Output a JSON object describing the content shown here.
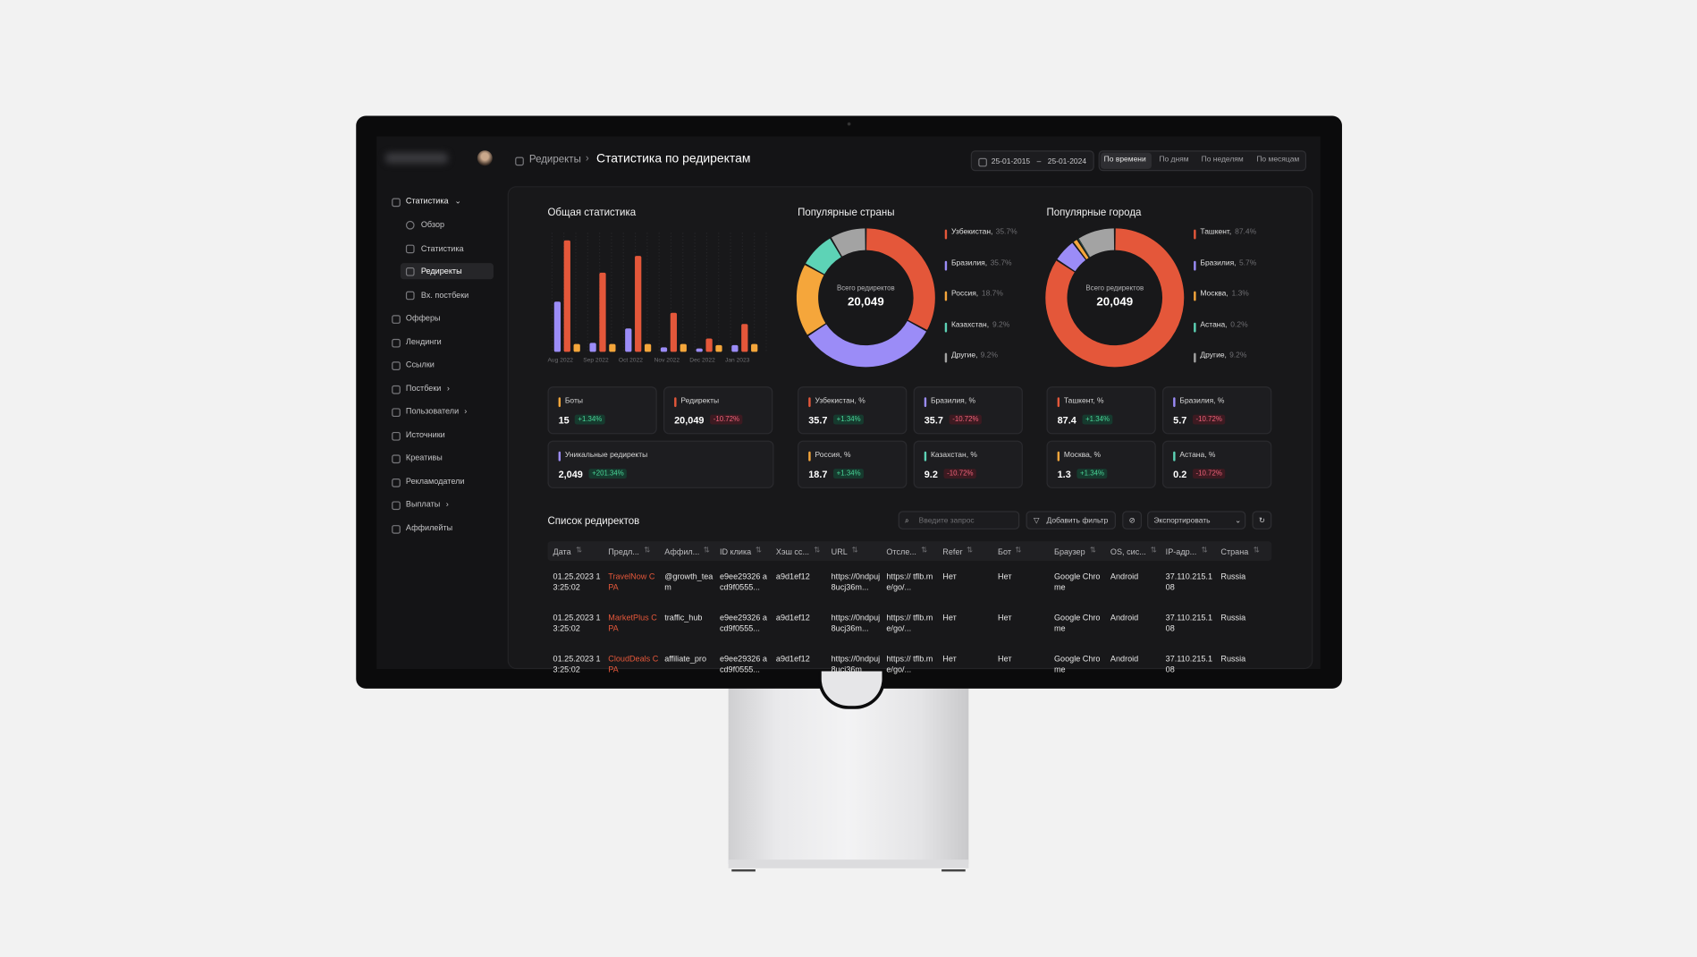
{
  "sidebar": {
    "group": {
      "label": "Статистика",
      "items": [
        "Обзор",
        "Статистика",
        "Редиректы",
        "Вх. постбеки"
      ]
    },
    "items": [
      "Офферы",
      "Лендинги",
      "Ссылки",
      "Постбеки",
      "Пользователи",
      "Источники",
      "Креативы",
      "Рекламодатели",
      "Выплаты",
      "Аффилейты"
    ]
  },
  "breadcrumb": {
    "parent": "Редиректы",
    "current": "Статистика по редиректам"
  },
  "date_range": {
    "from": "25-01-2015",
    "separator": "–",
    "to": "25-01-2024"
  },
  "period_tabs": [
    "По времени",
    "По дням",
    "По неделям",
    "По месяцам"
  ],
  "overall": {
    "title": "Общая статистика",
    "chart": {
      "type": "bar",
      "categories": [
        "Aug 2022",
        "Sep 2022",
        "Oct 2022",
        "Nov 2022",
        "Dec 2022",
        "Jan 2023"
      ],
      "series": [
        {
          "color": "#9b8cf7",
          "values": [
            45,
            8,
            21,
            4,
            3,
            6
          ]
        },
        {
          "color": "#e4573a",
          "values": [
            100,
            71,
            86,
            35,
            12,
            25
          ]
        },
        {
          "color": "#f5a63b",
          "values": [
            7,
            7,
            7,
            7,
            6,
            7
          ]
        }
      ]
    },
    "cards": [
      {
        "label": "Боты",
        "value": "15",
        "change": "+1.34%",
        "color": "#f5a63b"
      },
      {
        "label": "Редиректы",
        "value": "20,049",
        "change": "-10.72%",
        "color": "#e4573a"
      },
      {
        "label": "Уникальные редиректы",
        "value": "2,049",
        "change": "+201.34%",
        "color": "#9b8cf7"
      }
    ]
  },
  "countries": {
    "title": "Популярные страны",
    "chart": {
      "type": "pie",
      "center_label": "Всего редиректов",
      "center_value": "20,049",
      "categories": [
        "Узбекистан,",
        "Бразилия,",
        "Россия,",
        "Казахстан,",
        "Другие,"
      ],
      "values": [
        35.7,
        35.7,
        18.7,
        9.2,
        9.2
      ],
      "value_labels": [
        "35.7%",
        "35.7%",
        "18.7%",
        "9.2%",
        "9.2%"
      ],
      "colors": [
        "#e4573a",
        "#9b8cf7",
        "#f5a63b",
        "#5dd3b6",
        "#a3a3a3"
      ]
    },
    "cards": [
      {
        "label": "Узбекистан, %",
        "value": "35.7",
        "change": "+1.34%",
        "color": "#e4573a"
      },
      {
        "label": "Бразилия, %",
        "value": "35.7",
        "change": "-10.72%",
        "color": "#9b8cf7"
      },
      {
        "label": "Россия, %",
        "value": "18.7",
        "change": "+1.34%",
        "color": "#f5a63b"
      },
      {
        "label": "Казахстан, %",
        "value": "9.2",
        "change": "-10.72%",
        "color": "#5dd3b6"
      }
    ]
  },
  "cities": {
    "title": "Популярные города",
    "chart": {
      "type": "pie",
      "center_label": "Всего редиректов",
      "center_value": "20,049",
      "categories": [
        "Ташкент,",
        "Бразилия,",
        "Москва,",
        "Астана,",
        "Другие,"
      ],
      "values": [
        87.4,
        5.7,
        1.3,
        0.2,
        9.2
      ],
      "value_labels": [
        "87.4%",
        "5.7%",
        "1.3%",
        "0.2%",
        "9.2%"
      ],
      "colors": [
        "#e4573a",
        "#9b8cf7",
        "#f5a63b",
        "#5dd3b6",
        "#a3a3a3"
      ]
    },
    "cards": [
      {
        "label": "Ташкент, %",
        "value": "87.4",
        "change": "+1.34%",
        "color": "#e4573a"
      },
      {
        "label": "Бразилия, %",
        "value": "5.7",
        "change": "-10.72%",
        "color": "#9b8cf7"
      },
      {
        "label": "Москва, %",
        "value": "1.3",
        "change": "+1.34%",
        "color": "#f5a63b"
      },
      {
        "label": "Астана, %",
        "value": "0.2",
        "change": "-10.72%",
        "color": "#5dd3b6"
      }
    ]
  },
  "table": {
    "title": "Список редиректов",
    "search_placeholder": "Введите запрос",
    "filter_button": "Добавить фильтр",
    "export_button": "Экспортировать",
    "columns": [
      "Дата",
      "Предл...",
      "Аффил...",
      "ID клика",
      "Хэш сс...",
      "URL",
      "Отсле...",
      "Refer",
      "Бот",
      "Браузер",
      "OS, сис...",
      "IP-адр...",
      "Страна"
    ],
    "rows": [
      [
        "01.25.2023 13:25:02",
        "TravelNow CPA",
        "@growth_team",
        "e9ee29326 acd9f0555...",
        "a9d1ef12",
        "https://0ndpuj8ucj36m...",
        "https:// tflb.me/go/...",
        "Нет",
        "Нет",
        "Google Chrome",
        "Android",
        "37.110.215.108",
        "Russia"
      ],
      [
        "01.25.2023 13:25:02",
        "MarketPlus CPA",
        "traffic_hub",
        "e9ee29326 acd9f0555...",
        "a9d1ef12",
        "https://0ndpuj8ucj36m...",
        "https:// tflb.me/go/...",
        "Нет",
        "Нет",
        "Google Chrome",
        "Android",
        "37.110.215.108",
        "Russia"
      ],
      [
        "01.25.2023 13:25:02",
        "CloudDeals CPA",
        "affiliate_pro",
        "e9ee29326 acd9f0555...",
        "a9d1ef12",
        "https://0ndpuj8ucj36m...",
        "https:// tflb.me/go/...",
        "Нет",
        "Нет",
        "Google Chrome",
        "Android",
        "37.110.215.108",
        "Russia"
      ]
    ]
  }
}
